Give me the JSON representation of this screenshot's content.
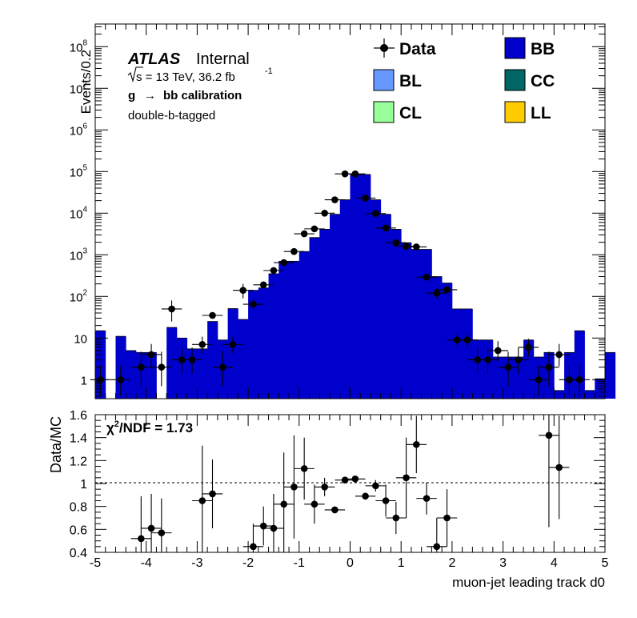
{
  "chart_data": [
    {
      "type": "histogram",
      "panel": "main",
      "ylabel": "Events/0.2",
      "yscale": "log",
      "ylim": [
        0.35,
        350000000
      ],
      "xlim": [
        -5,
        5
      ],
      "bin_width": 0.2,
      "bin_edges_start": -5,
      "y_tick_labels": [
        {
          "mant": "",
          "exp": "",
          "text": "1",
          "v": 1
        },
        {
          "mant": "",
          "exp": "",
          "text": "10",
          "v": 10
        },
        {
          "mant": "10",
          "exp": "2",
          "text": "",
          "v": 100
        },
        {
          "mant": "10",
          "exp": "3",
          "text": "",
          "v": 1000
        },
        {
          "mant": "10",
          "exp": "4",
          "text": "",
          "v": 10000
        },
        {
          "mant": "10",
          "exp": "5",
          "text": "",
          "v": 100000
        },
        {
          "mant": "10",
          "exp": "6",
          "text": "",
          "v": 1000000
        },
        {
          "mant": "10",
          "exp": "7",
          "text": "",
          "v": 10000000
        },
        {
          "mant": "10",
          "exp": "8",
          "text": "",
          "v": 100000000
        }
      ],
      "annotations": {
        "atlas": "ATLAS",
        "internal": "Internal",
        "sqrt_s": "s = 13 TeV, 36.2 fb",
        "lumi_exp": "-1",
        "process_g": "g",
        "process_arrow": "→",
        "process_rest": "bb calibration",
        "tagging": "double-b-tagged"
      },
      "legend_entries": [
        {
          "label": "Data",
          "kind": "marker",
          "color": "#000000"
        },
        {
          "label": "BB",
          "kind": "fill",
          "color": "#0000cc"
        },
        {
          "label": "BL",
          "kind": "fill",
          "color": "#6699ff"
        },
        {
          "label": "CC",
          "kind": "fill",
          "color": "#006666"
        },
        {
          "label": "CL",
          "kind": "fill",
          "color": "#99ff99"
        },
        {
          "label": "LL",
          "kind": "fill",
          "color": "#ffcc00"
        }
      ],
      "legend_placement": "top-right",
      "mc_stack_total": [
        15,
        0,
        11,
        5,
        4.5,
        4.5,
        0,
        18,
        10,
        5.5,
        5.5,
        25,
        9,
        51,
        28,
        140,
        160,
        350,
        700,
        700,
        1200,
        2600,
        4100,
        9400,
        21000,
        85000,
        85000,
        21000,
        9400,
        4100,
        1950,
        1350,
        1350,
        300,
        210,
        50,
        50,
        9,
        9,
        3.5,
        3.5,
        3.5,
        9,
        3.5,
        4.5,
        0.55,
        4.5,
        15,
        0.55,
        1.05,
        4.5
      ],
      "data_points": [
        {
          "x": -4.9,
          "y": 1,
          "err_lo": 0.6,
          "err_hi": 1.2
        },
        {
          "x": -4.5,
          "y": 1,
          "err_lo": 0.6,
          "err_hi": 1.2
        },
        {
          "x": -4.1,
          "y": 2,
          "err_lo": 1.3,
          "err_hi": 2.7
        },
        {
          "x": -3.9,
          "y": 4,
          "err_lo": 1.9,
          "err_hi": 3.2
        },
        {
          "x": -3.7,
          "y": 2,
          "err_lo": 1.3,
          "err_hi": 2.7
        },
        {
          "x": -3.5,
          "y": 50,
          "err_lo": 25,
          "err_hi": 30
        },
        {
          "x": -3.3,
          "y": 3,
          "err_lo": 1.6,
          "err_hi": 2.9
        },
        {
          "x": -3.1,
          "y": 3,
          "err_lo": 1.6,
          "err_hi": 2.9
        },
        {
          "x": -2.9,
          "y": 7,
          "err_lo": 2.6,
          "err_hi": 3.8
        },
        {
          "x": -2.7,
          "y": 35,
          "err_lo": 6,
          "err_hi": 7
        },
        {
          "x": -2.5,
          "y": 2,
          "err_lo": 1.3,
          "err_hi": 2.7
        },
        {
          "x": -2.3,
          "y": 7,
          "err_lo": 2.6,
          "err_hi": 3.8
        },
        {
          "x": -2.1,
          "y": 140,
          "err_lo": 50,
          "err_hi": 60
        },
        {
          "x": -1.9,
          "y": 65,
          "err_lo": 20,
          "err_hi": 25
        },
        {
          "x": -1.7,
          "y": 190,
          "err_lo": 14,
          "err_hi": 15
        },
        {
          "x": -1.5,
          "y": 420,
          "err_lo": 40,
          "err_hi": 40
        },
        {
          "x": -1.3,
          "y": 650,
          "err_lo": 60,
          "err_hi": 60
        },
        {
          "x": -1.1,
          "y": 1200,
          "err_lo": 35,
          "err_hi": 35
        },
        {
          "x": -0.9,
          "y": 3200,
          "err_lo": 60,
          "err_hi": 60
        },
        {
          "x": -0.7,
          "y": 4200,
          "err_lo": 70,
          "err_hi": 70
        },
        {
          "x": -0.5,
          "y": 10000,
          "err_lo": 100,
          "err_hi": 100
        },
        {
          "x": -0.3,
          "y": 21000,
          "err_lo": 150,
          "err_hi": 150
        },
        {
          "x": -0.1,
          "y": 88000,
          "err_lo": 300,
          "err_hi": 300
        },
        {
          "x": 0.1,
          "y": 88000,
          "err_lo": 300,
          "err_hi": 300
        },
        {
          "x": 0.3,
          "y": 23000,
          "err_lo": 150,
          "err_hi": 150
        },
        {
          "x": 0.5,
          "y": 9800,
          "err_lo": 100,
          "err_hi": 100
        },
        {
          "x": 0.7,
          "y": 4400,
          "err_lo": 70,
          "err_hi": 70
        },
        {
          "x": 0.9,
          "y": 1950,
          "err_lo": 45,
          "err_hi": 45
        },
        {
          "x": 1.1,
          "y": 1600,
          "err_lo": 40,
          "err_hi": 40
        },
        {
          "x": 1.3,
          "y": 1550,
          "err_lo": 40,
          "err_hi": 40
        },
        {
          "x": 1.5,
          "y": 290,
          "err_lo": 17,
          "err_hi": 17
        },
        {
          "x": 1.7,
          "y": 120,
          "err_lo": 30,
          "err_hi": 35
        },
        {
          "x": 1.9,
          "y": 145,
          "err_lo": 12,
          "err_hi": 12
        },
        {
          "x": 2.1,
          "y": 9,
          "err_lo": 3,
          "err_hi": 4
        },
        {
          "x": 2.3,
          "y": 9,
          "err_lo": 3,
          "err_hi": 4
        },
        {
          "x": 2.5,
          "y": 3,
          "err_lo": 1.6,
          "err_hi": 2.9
        },
        {
          "x": 2.7,
          "y": 3,
          "err_lo": 1.6,
          "err_hi": 2.9
        },
        {
          "x": 2.9,
          "y": 5,
          "err_lo": 2.2,
          "err_hi": 3.4
        },
        {
          "x": 3.1,
          "y": 2,
          "err_lo": 1.3,
          "err_hi": 2.7
        },
        {
          "x": 3.3,
          "y": 3,
          "err_lo": 1.6,
          "err_hi": 2.9
        },
        {
          "x": 3.5,
          "y": 6,
          "err_lo": 2.4,
          "err_hi": 3.6
        },
        {
          "x": 3.7,
          "y": 1,
          "err_lo": 0.6,
          "err_hi": 1.2
        },
        {
          "x": 3.9,
          "y": 2,
          "err_lo": 1.3,
          "err_hi": 2.7
        },
        {
          "x": 4.1,
          "y": 4,
          "err_lo": 1.9,
          "err_hi": 3.2
        },
        {
          "x": 4.3,
          "y": 1,
          "err_lo": 0.6,
          "err_hi": 1.2
        },
        {
          "x": 4.5,
          "y": 1,
          "err_lo": 0.6,
          "err_hi": 1.2
        }
      ]
    },
    {
      "type": "scatter",
      "panel": "ratio",
      "ylabel": "Data/MC",
      "xlabel": "muon-jet leading track d0",
      "xlim": [
        -5,
        5
      ],
      "ylim": [
        0.4,
        1.6
      ],
      "x_ticks": [
        -5,
        -4,
        -3,
        -2,
        -1,
        0,
        1,
        2,
        3,
        4,
        5
      ],
      "y_ticks": [
        0.4,
        0.6,
        0.8,
        1,
        1.2,
        1.4,
        1.6
      ],
      "y_tick_labels": [
        "0.4",
        "0.6",
        "0.8",
        "1",
        "1.2",
        "1.4",
        "1.6"
      ],
      "reference_line": 1,
      "chi2_label": "χ",
      "chi2_sup": "2",
      "chi2_rest": "/NDF = 1.73",
      "points": [
        {
          "x": -4.1,
          "y": 0.52,
          "err": 0.37
        },
        {
          "x": -3.9,
          "y": 0.61,
          "err": 0.3
        },
        {
          "x": -3.7,
          "y": 0.57,
          "err": 0.3
        },
        {
          "x": -2.9,
          "y": 0.85,
          "err": 0.48
        },
        {
          "x": -2.7,
          "y": 0.91,
          "err": 0.3
        },
        {
          "x": -1.9,
          "y": 0.45,
          "err": 0.2
        },
        {
          "x": -1.7,
          "y": 0.63,
          "err": 0.17
        },
        {
          "x": -1.5,
          "y": 0.61,
          "err": 0.3
        },
        {
          "x": -1.3,
          "y": 0.82,
          "err": 0.45
        },
        {
          "x": -1.1,
          "y": 0.97,
          "err": 0.45
        },
        {
          "x": -0.9,
          "y": 1.13,
          "err": 0.27
        },
        {
          "x": -0.7,
          "y": 0.82,
          "err": 0.17
        },
        {
          "x": -0.5,
          "y": 0.97,
          "err": 0.08
        },
        {
          "x": -0.3,
          "y": 0.77,
          "err": 0.03
        },
        {
          "x": -0.1,
          "y": 1.03,
          "err": 0.015
        },
        {
          "x": 0.1,
          "y": 1.04,
          "err": 0.015
        },
        {
          "x": 0.3,
          "y": 0.89,
          "err": 0.03
        },
        {
          "x": 0.5,
          "y": 0.98,
          "err": 0.05
        },
        {
          "x": 0.7,
          "y": 0.85,
          "err": 0.14
        },
        {
          "x": 0.9,
          "y": 0.7,
          "err": 0.14
        },
        {
          "x": 1.1,
          "y": 1.05,
          "err": 0.35
        },
        {
          "x": 1.3,
          "y": 1.34,
          "err": 0.25
        },
        {
          "x": 1.5,
          "y": 0.87,
          "err": 0.14
        },
        {
          "x": 1.7,
          "y": 0.45,
          "err": 0.25
        },
        {
          "x": 1.9,
          "y": 0.7,
          "err": 0.25
        },
        {
          "x": 3.9,
          "y": 1.42,
          "err": 0.8
        },
        {
          "x": 4.1,
          "y": 1.14,
          "err": 0.45
        }
      ]
    }
  ]
}
